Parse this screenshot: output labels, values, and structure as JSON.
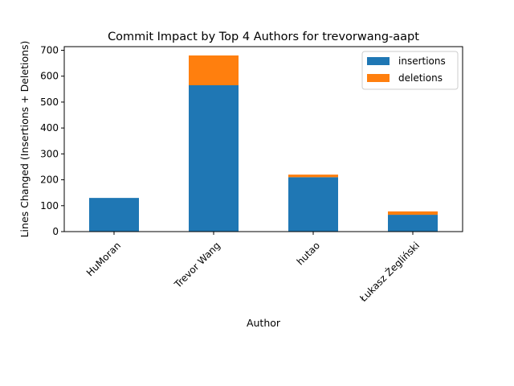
{
  "chart_data": {
    "type": "bar",
    "stacked": true,
    "title": "Commit Impact by Top 4 Authors for trevorwang-aapt",
    "xlabel": "Author",
    "ylabel": "Lines Changed (Insertions + Deletions)",
    "categories": [
      "HuMoran",
      "Trevor Wang",
      "hutao",
      "Łukasz Żegliński"
    ],
    "series": [
      {
        "name": "insertions",
        "color": "#1f77b4",
        "values": [
          130,
          565,
          210,
          65
        ]
      },
      {
        "name": "deletions",
        "color": "#ff7f0e",
        "values": [
          0,
          115,
          10,
          13
        ]
      }
    ],
    "ylim": [
      0,
      714
    ],
    "yticks": [
      0,
      100,
      200,
      300,
      400,
      500,
      600,
      700
    ],
    "legend_position": "top-right",
    "grid": false
  }
}
